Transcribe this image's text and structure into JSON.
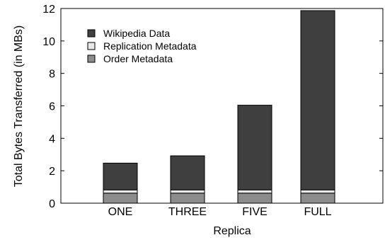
{
  "chart_data": {
    "type": "bar",
    "stacked": true,
    "categories": [
      "ONE",
      "THREE",
      "FIVE",
      "FULL"
    ],
    "series": [
      {
        "name": "Order Metadata",
        "values": [
          0.62,
          0.62,
          0.62,
          0.62
        ],
        "color": "#8c8c8c"
      },
      {
        "name": "Replication Metadata",
        "values": [
          0.2,
          0.2,
          0.2,
          0.2
        ],
        "color": "#e8e8e8"
      },
      {
        "name": "Wikipedia Data",
        "values": [
          1.65,
          2.1,
          5.22,
          11.05
        ],
        "color": "#3f3f3f"
      }
    ],
    "legend_order": [
      "Wikipedia Data",
      "Replication Metadata",
      "Order Metadata"
    ],
    "xlabel": "Replica",
    "ylabel": "Total Bytes Transferred (in MBs)",
    "ylim": [
      0,
      12
    ],
    "yticks": [
      "0",
      "2",
      "4",
      "6",
      "8",
      "10",
      "12"
    ],
    "legend_position": "top-left",
    "grid": false
  }
}
